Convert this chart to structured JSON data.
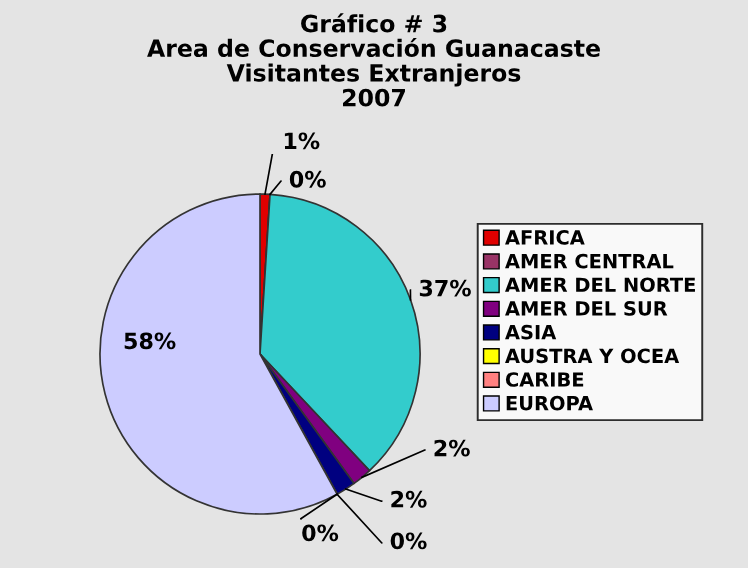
{
  "chart_data": {
    "type": "pie",
    "title": "Gráfico # 3\nArea de Conservación Guanacaste\nVisitantes Extranjeros\n2007",
    "categories": [
      "AFRICA",
      "AMER CENTRAL",
      "AMER DEL NORTE",
      "AMER DEL SUR",
      "ASIA",
      "AUSTRA Y OCEA",
      "CARIBE",
      "EUROPA"
    ],
    "values": [
      1,
      0,
      37,
      2,
      2,
      0,
      0,
      58
    ],
    "colors": [
      "#e00000",
      "#993366",
      "#33cccc",
      "#800080",
      "#000080",
      "#ffff00",
      "#ff8080",
      "#ccccff"
    ],
    "value_labels": [
      "1%",
      "0%",
      "37%",
      "2%",
      "2%",
      "0%",
      "0%",
      "58%"
    ],
    "legend": "right"
  }
}
